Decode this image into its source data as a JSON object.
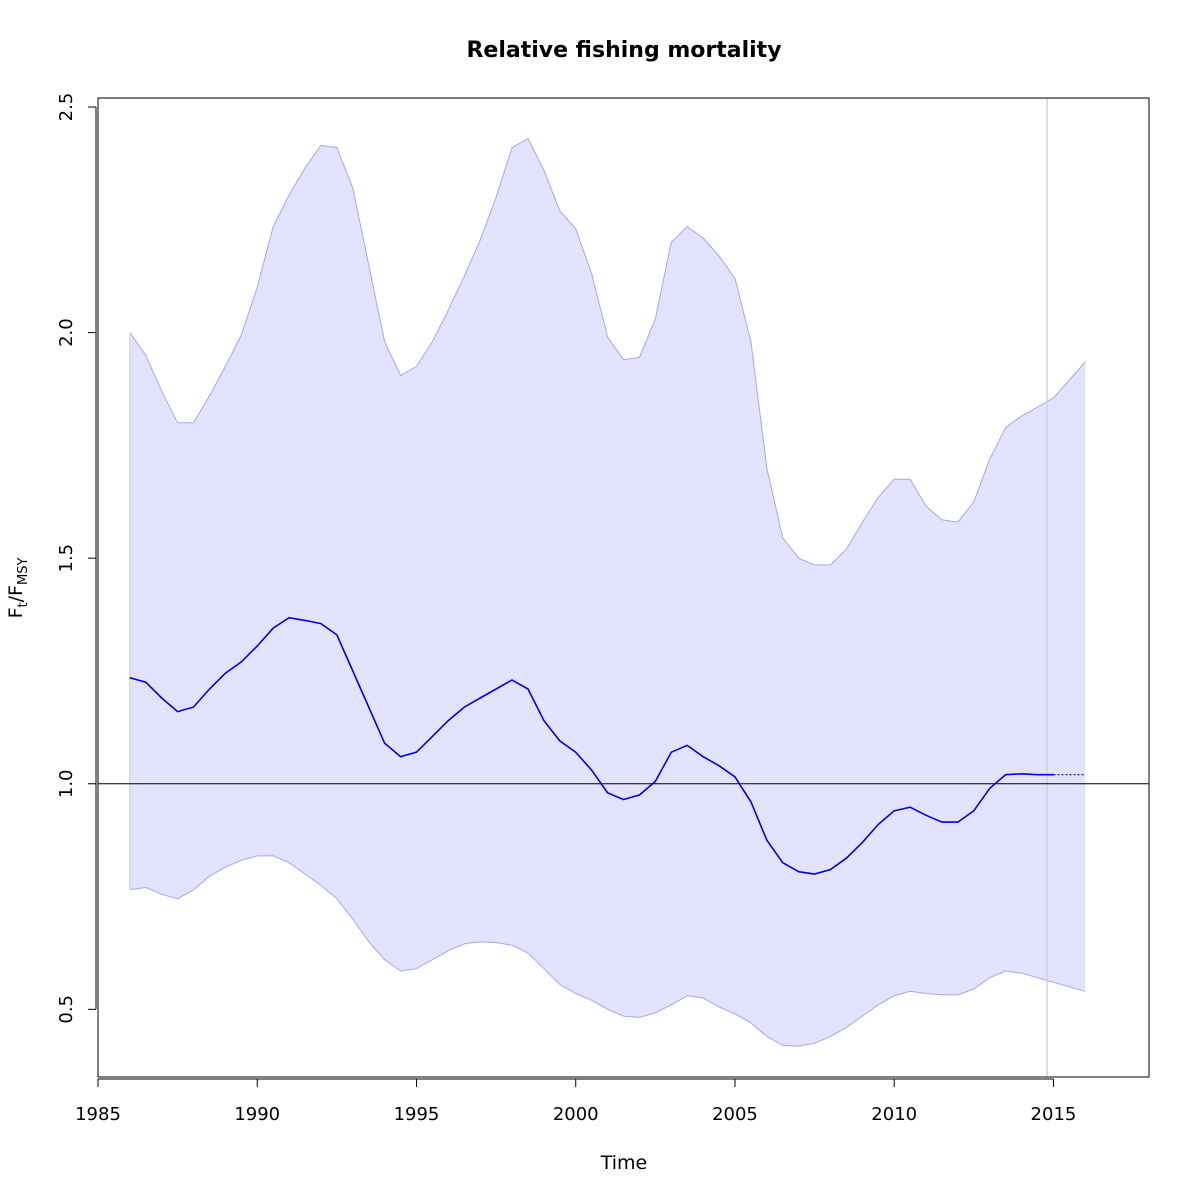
{
  "chart_data": {
    "type": "line",
    "title": "Relative fishing mortality",
    "xlabel": "Time",
    "ylabel": {
      "main": "F",
      "sub1": "t",
      "sep": "/",
      "main2": "F",
      "sub2": "MSY"
    },
    "xlim": [
      1985,
      2018
    ],
    "ylim": [
      0.35,
      2.52
    ],
    "x_ticks": [
      1985,
      1990,
      1995,
      2000,
      2005,
      2010,
      2015
    ],
    "x_tick_labels": [
      "1985",
      "1990",
      "1995",
      "2000",
      "2005",
      "2010",
      "2015"
    ],
    "y_ticks": [
      0.5,
      1.0,
      1.5,
      2.0,
      2.5
    ],
    "y_tick_labels": [
      "0.5",
      "1.0",
      "1.5",
      "2.0",
      "2.5"
    ],
    "reference_line_y": 1.0,
    "last_data_time": 14.8,
    "grid": false,
    "colors": {
      "line": "#0000ee",
      "band_fill": "#e3e3ff",
      "band_edge": "#a6a6f0",
      "reference": "#000000",
      "vline": "#d3d3d3"
    },
    "series": [
      {
        "role": "estimate",
        "x": [
          1986.0,
          1986.5,
          1987.0,
          1987.5,
          1988.0,
          1988.5,
          1989.0,
          1989.5,
          1990.0,
          1990.5,
          1991.0,
          1991.5,
          1992.0,
          1992.5,
          1993.0,
          1993.5,
          1994.0,
          1994.5,
          1995.0,
          1995.5,
          1996.0,
          1996.5,
          1997.0,
          1997.5,
          1998.0,
          1998.5,
          1999.0,
          1999.5,
          2000.0,
          2000.5,
          2001.0,
          2001.5,
          2002.0,
          2002.5,
          2003.0,
          2003.5,
          2004.0,
          2004.5,
          2005.0,
          2005.5,
          2006.0,
          2006.5,
          2007.0,
          2007.5,
          2008.0,
          2008.5,
          2009.0,
          2009.5,
          2010.0,
          2010.5,
          2011.0,
          2011.5,
          2012.0,
          2012.5,
          2013.0,
          2013.5,
          2014.0,
          2014.5,
          2015.0
        ],
        "y": [
          1.235,
          1.225,
          1.19,
          1.16,
          1.17,
          1.21,
          1.245,
          1.27,
          1.305,
          1.345,
          1.368,
          1.362,
          1.355,
          1.33,
          1.25,
          1.17,
          1.09,
          1.06,
          1.07,
          1.105,
          1.14,
          1.17,
          1.19,
          1.21,
          1.23,
          1.21,
          1.14,
          1.095,
          1.07,
          1.03,
          0.98,
          0.965,
          0.975,
          1.005,
          1.07,
          1.085,
          1.06,
          1.04,
          1.015,
          0.96,
          0.875,
          0.825,
          0.805,
          0.8,
          0.81,
          0.835,
          0.87,
          0.91,
          0.94,
          0.948,
          0.93,
          0.915,
          0.915,
          0.94,
          0.99,
          1.02,
          1.022,
          1.02,
          1.02
        ]
      },
      {
        "role": "forecast",
        "x": [
          2015.0,
          2016.0
        ],
        "y": [
          1.02,
          1.02
        ]
      },
      {
        "role": "upper",
        "x": [
          1986.0,
          1986.5,
          1987.0,
          1987.5,
          1988.0,
          1988.5,
          1989.0,
          1989.5,
          1990.0,
          1990.5,
          1991.0,
          1991.5,
          1992.0,
          1992.5,
          1993.0,
          1993.5,
          1994.0,
          1994.5,
          1995.0,
          1995.5,
          1996.0,
          1996.5,
          1997.0,
          1997.5,
          1998.0,
          1998.5,
          1999.0,
          1999.5,
          2000.0,
          2000.5,
          2001.0,
          2001.5,
          2002.0,
          2002.5,
          2003.0,
          2003.5,
          2004.0,
          2004.5,
          2005.0,
          2005.5,
          2006.0,
          2006.5,
          2007.0,
          2007.5,
          2008.0,
          2008.5,
          2009.0,
          2009.5,
          2010.0,
          2010.5,
          2011.0,
          2011.5,
          2012.0,
          2012.5,
          2013.0,
          2013.5,
          2014.0,
          2014.5,
          2015.0,
          2015.5,
          2016.0
        ],
        "y": [
          2.0,
          1.95,
          1.87,
          1.8,
          1.8,
          1.86,
          1.925,
          1.995,
          2.1,
          2.235,
          2.305,
          2.365,
          2.415,
          2.41,
          2.32,
          2.15,
          1.98,
          1.905,
          1.925,
          1.98,
          2.05,
          2.125,
          2.205,
          2.3,
          2.41,
          2.43,
          2.36,
          2.27,
          2.23,
          2.13,
          1.99,
          1.94,
          1.945,
          2.03,
          2.2,
          2.235,
          2.21,
          2.17,
          2.12,
          1.98,
          1.7,
          1.545,
          1.5,
          1.485,
          1.485,
          1.52,
          1.58,
          1.635,
          1.675,
          1.675,
          1.615,
          1.585,
          1.58,
          1.625,
          1.72,
          1.79,
          1.815,
          1.835,
          1.855,
          1.895,
          1.935
        ]
      },
      {
        "role": "lower",
        "x": [
          1986.0,
          1986.5,
          1987.0,
          1987.5,
          1988.0,
          1988.5,
          1989.0,
          1989.5,
          1990.0,
          1990.5,
          1991.0,
          1991.5,
          1992.0,
          1992.5,
          1993.0,
          1993.5,
          1994.0,
          1994.5,
          1995.0,
          1995.5,
          1996.0,
          1996.5,
          1997.0,
          1997.5,
          1998.0,
          1998.5,
          1999.0,
          1999.5,
          2000.0,
          2000.5,
          2001.0,
          2001.5,
          2002.0,
          2002.5,
          2003.0,
          2003.5,
          2004.0,
          2004.5,
          2005.0,
          2005.5,
          2006.0,
          2006.5,
          2007.0,
          2007.5,
          2008.0,
          2008.5,
          2009.0,
          2009.5,
          2010.0,
          2010.5,
          2011.0,
          2011.5,
          2012.0,
          2012.5,
          2013.0,
          2013.5,
          2014.0,
          2014.5,
          2015.0,
          2015.5,
          2016.0
        ],
        "y": [
          0.765,
          0.77,
          0.755,
          0.745,
          0.765,
          0.795,
          0.815,
          0.83,
          0.84,
          0.84,
          0.825,
          0.8,
          0.775,
          0.745,
          0.7,
          0.65,
          0.61,
          0.585,
          0.59,
          0.61,
          0.63,
          0.645,
          0.65,
          0.648,
          0.642,
          0.625,
          0.59,
          0.555,
          0.535,
          0.52,
          0.5,
          0.485,
          0.482,
          0.492,
          0.51,
          0.53,
          0.525,
          0.505,
          0.49,
          0.47,
          0.44,
          0.42,
          0.418,
          0.425,
          0.44,
          0.46,
          0.485,
          0.51,
          0.53,
          0.54,
          0.535,
          0.532,
          0.532,
          0.545,
          0.57,
          0.585,
          0.58,
          0.57,
          0.56,
          0.55,
          0.54
        ]
      }
    ]
  }
}
